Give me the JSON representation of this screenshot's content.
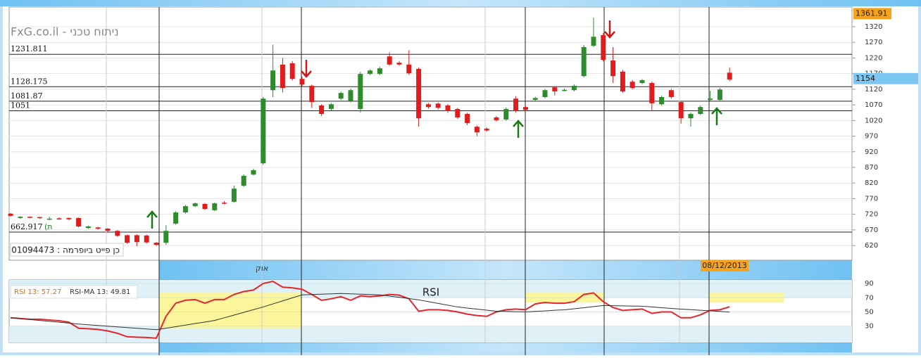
{
  "chart_data": [
    {
      "type": "candlestick",
      "title": "FxG.co.il - ניתוח טכני",
      "subtitle": "כן פייט ביופרמה : 01094473",
      "x_label": "אוק",
      "date_label": "08/12/2013",
      "up_color": "#2e8b2e",
      "down_color": "#e01c1c",
      "open": [
        722,
        708,
        712,
        711,
        706,
        707,
        708,
        708,
        676,
        678,
        674,
        667,
        653,
        653,
        652,
        629,
        629,
        690,
        726,
        746,
        753,
        733,
        757,
        760,
        811,
        847,
        883,
        1117,
        1199,
        1203,
        1153,
        1131,
        1068,
        1057,
        1090,
        1083,
        1057,
        1169,
        1169,
        1225,
        1205,
        1199,
        1185,
        1072,
        1074,
        1068,
        1057,
        1041,
        1000,
        994,
        1030,
        1023,
        1090,
        1063,
        1086,
        1095,
        1126,
        1117,
        1117,
        1162,
        1259,
        1293,
        1212,
        1176,
        1144,
        1140,
        1140,
        1072,
        1117,
        1079,
        1027,
        1041,
        1086,
        1086,
        1173
      ],
      "high": [
        724,
        714,
        713,
        712,
        712,
        710,
        710,
        710,
        684,
        680,
        676,
        669,
        655,
        656,
        655,
        632,
        685,
        730,
        750,
        758,
        756,
        758,
        762,
        812,
        848,
        866,
        1095,
        1263,
        1220,
        1210,
        1160,
        1135,
        1072,
        1076,
        1112,
        1122,
        1176,
        1184,
        1192,
        1238,
        1210,
        1245,
        1190,
        1076,
        1078,
        1072,
        1060,
        1045,
        1004,
        998,
        1034,
        1062,
        1098,
        1067,
        1096,
        1121,
        1130,
        1122,
        1136,
        1262,
        1349,
        1300,
        1255,
        1182,
        1149,
        1152,
        1145,
        1100,
        1121,
        1083,
        1046,
        1068,
        1115,
        1124,
        1190
      ],
      "low": [
        713,
        705,
        707,
        706,
        702,
        702,
        701,
        678,
        673,
        671,
        664,
        648,
        626,
        618,
        626,
        619,
        622,
        686,
        722,
        743,
        734,
        730,
        752,
        757,
        808,
        844,
        878,
        1095,
        1110,
        1148,
        1130,
        1060,
        1035,
        1052,
        1086,
        1078,
        1045,
        1165,
        1165,
        1195,
        1195,
        1166,
        1000,
        1058,
        1056,
        1045,
        1025,
        1005,
        970,
        984,
        1017,
        1019,
        1045,
        1050,
        1082,
        1091,
        1100,
        1113,
        1113,
        1158,
        1255,
        1209,
        1140,
        1108,
        1120,
        1136,
        1050,
        1068,
        1090,
        1010,
        1000,
        1037,
        1082,
        1082,
        1146
      ],
      "close": [
        715,
        712,
        709,
        708,
        706,
        704,
        704,
        681,
        681,
        674,
        667,
        651,
        629,
        631,
        630,
        622,
        667,
        726,
        746,
        755,
        737,
        755,
        756,
        802,
        843,
        861,
        1090,
        1180,
        1124,
        1153,
        1135,
        1079,
        1041,
        1072,
        1108,
        1117,
        1169,
        1180,
        1187,
        1199,
        1199,
        1171,
        1027,
        1063,
        1061,
        1050,
        1030,
        1012,
        982,
        988,
        1021,
        1057,
        1050,
        1054,
        1092,
        1117,
        1113,
        1118,
        1131,
        1255,
        1288,
        1214,
        1162,
        1113,
        1124,
        1149,
        1075,
        1095,
        1095,
        1027,
        1041,
        1063,
        1090,
        1119,
        1151
      ],
      "levels": [
        1231.811,
        1128.175,
        1081.87,
        1051,
        662.917
      ],
      "level_note": "(ת",
      "high_badge": 1361.91,
      "price_badge": 1154,
      "ylim": [
        573,
        1383
      ],
      "yticks": [
        620,
        670,
        720,
        770,
        820,
        870,
        920,
        970,
        1020,
        1070,
        1120,
        1170,
        1220,
        1270,
        1320
      ],
      "grid": true
    },
    {
      "type": "line",
      "title": "RSI",
      "series": [
        {
          "name": "RSI 13: 57.27",
          "color": "#e5262a",
          "values": [
            41.8,
            40.8,
            39.7,
            39.7,
            38.7,
            37.7,
            35.6,
            27,
            26.4,
            25.4,
            23.3,
            20,
            15.1,
            14.6,
            14.1,
            13.1,
            44,
            62.3,
            66.4,
            67.4,
            62.3,
            67.4,
            67.4,
            74.6,
            78.7,
            80.8,
            90,
            93,
            84.9,
            83.9,
            81.8,
            74.6,
            66.4,
            68.5,
            71.5,
            66.4,
            72.6,
            71.5,
            72.6,
            74.6,
            73.6,
            68.5,
            51,
            53.1,
            53.1,
            52.1,
            50,
            46.9,
            44.9,
            43.8,
            50,
            53.1,
            54.1,
            53.1,
            61.3,
            63.3,
            62.3,
            62.3,
            64.4,
            74.6,
            76.7,
            64.4,
            56.2,
            52.1,
            53.1,
            54.1,
            47.9,
            50,
            50,
            41.8,
            41.8,
            46,
            52.1,
            53.1,
            57.27
          ]
        },
        {
          "name": "RSI-MA 13: 49.81",
          "color": "#333333",
          "values": [
            41.8,
            40.5,
            39.3,
            38,
            36.8,
            35.5,
            34.3,
            33,
            32,
            31,
            30,
            29,
            28,
            27,
            26,
            25,
            27.2,
            29.3,
            31.5,
            33.7,
            35.8,
            38,
            41.8,
            45.6,
            49.4,
            53.2,
            57,
            61.3,
            65.5,
            69.8,
            74,
            74.5,
            75,
            75.5,
            76,
            75.5,
            75,
            74.5,
            74,
            72.3,
            70.5,
            68.8,
            67,
            64.5,
            62,
            59.5,
            57,
            55.5,
            54,
            52.5,
            51,
            50.7,
            50.3,
            50,
            50.8,
            51.5,
            52.3,
            53,
            54.5,
            56,
            57.5,
            59,
            58.8,
            58.5,
            58.3,
            58,
            57,
            56,
            55,
            54,
            53.2,
            52.4,
            51.6,
            50.8,
            49.81
          ]
        }
      ],
      "ylim": [
        7,
        95
      ],
      "yticks": [
        90,
        70,
        50,
        30
      ]
    }
  ]
}
